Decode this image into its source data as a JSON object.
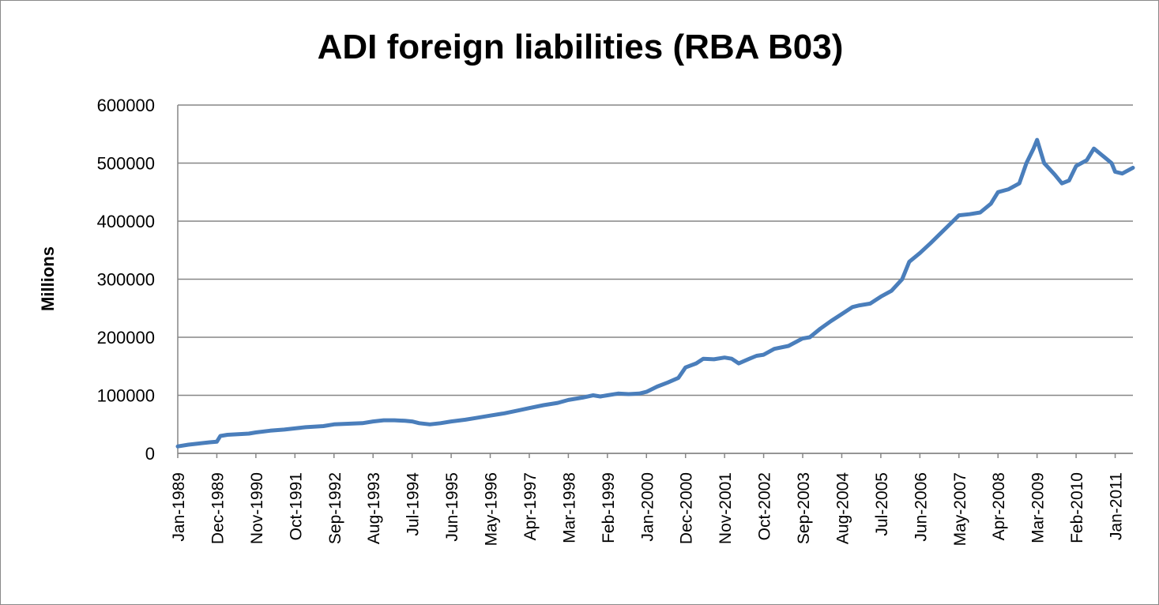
{
  "chart_data": {
    "type": "line",
    "title": "ADI foreign liabilities (RBA B03)",
    "xlabel": "",
    "ylabel": "Millions",
    "ylim": [
      0,
      600000
    ],
    "yticks": [
      "0",
      "100000",
      "200000",
      "300000",
      "400000",
      "500000",
      "600000"
    ],
    "x_start": "Jan-1989",
    "x_end": "Jun-2011",
    "x_frequency": "monthly",
    "xtick_labels": [
      "Jan-1989",
      "Dec-1989",
      "Nov-1990",
      "Oct-1991",
      "Sep-1992",
      "Aug-1993",
      "Jul-1994",
      "Jun-1995",
      "May-1996",
      "Apr-1997",
      "Mar-1998",
      "Feb-1999",
      "Jan-2000",
      "Dec-2000",
      "Nov-2001",
      "Oct-2002",
      "Sep-2003",
      "Aug-2004",
      "Jul-2005",
      "Jun-2006",
      "May-2007",
      "Apr-2008",
      "Mar-2009",
      "Feb-2010",
      "Jan-2011"
    ],
    "grid": true,
    "legend": "none",
    "series": [
      {
        "color": "#4a7ebb",
        "points": [
          [
            "Jan-1989",
            12000
          ],
          [
            "Apr-1989",
            15000
          ],
          [
            "Jul-1989",
            17000
          ],
          [
            "Oct-1989",
            19000
          ],
          [
            "Dec-1989",
            20000
          ],
          [
            "Jan-1990",
            30000
          ],
          [
            "Mar-1990",
            32000
          ],
          [
            "Jun-1990",
            33000
          ],
          [
            "Sep-1990",
            34000
          ],
          [
            "Nov-1990",
            36000
          ],
          [
            "Mar-1991",
            39000
          ],
          [
            "Jul-1991",
            41000
          ],
          [
            "Oct-1991",
            43000
          ],
          [
            "Jan-1992",
            45000
          ],
          [
            "Jun-1992",
            47000
          ],
          [
            "Sep-1992",
            50000
          ],
          [
            "Jan-1993",
            51000
          ],
          [
            "May-1993",
            52000
          ],
          [
            "Aug-1993",
            55000
          ],
          [
            "Nov-1993",
            57000
          ],
          [
            "Feb-1994",
            57000
          ],
          [
            "May-1994",
            56000
          ],
          [
            "Jul-1994",
            55000
          ],
          [
            "Sep-1994",
            52000
          ],
          [
            "Dec-1994",
            50000
          ],
          [
            "Mar-1995",
            52000
          ],
          [
            "Jun-1995",
            55000
          ],
          [
            "Oct-1995",
            58000
          ],
          [
            "Jan-1996",
            61000
          ],
          [
            "May-1996",
            65000
          ],
          [
            "Sep-1996",
            69000
          ],
          [
            "Jan-1997",
            74000
          ],
          [
            "Apr-1997",
            78000
          ],
          [
            "Aug-1997",
            83000
          ],
          [
            "Dec-1997",
            87000
          ],
          [
            "Mar-1998",
            92000
          ],
          [
            "Jul-1998",
            96000
          ],
          [
            "Oct-1998",
            100000
          ],
          [
            "Dec-1998",
            98000
          ],
          [
            "Feb-1999",
            100000
          ],
          [
            "May-1999",
            103000
          ],
          [
            "Aug-1999",
            102000
          ],
          [
            "Nov-1999",
            103000
          ],
          [
            "Jan-2000",
            106000
          ],
          [
            "Apr-2000",
            115000
          ],
          [
            "Jul-2000",
            122000
          ],
          [
            "Oct-2000",
            130000
          ],
          [
            "Dec-2000",
            148000
          ],
          [
            "Mar-2001",
            155000
          ],
          [
            "May-2001",
            163000
          ],
          [
            "Aug-2001",
            162000
          ],
          [
            "Nov-2001",
            165000
          ],
          [
            "Jan-2002",
            163000
          ],
          [
            "Mar-2002",
            155000
          ],
          [
            "Jun-2002",
            163000
          ],
          [
            "Aug-2002",
            168000
          ],
          [
            "Oct-2002",
            170000
          ],
          [
            "Jan-2003",
            180000
          ],
          [
            "May-2003",
            185000
          ],
          [
            "Sep-2003",
            198000
          ],
          [
            "Nov-2003",
            200000
          ],
          [
            "Feb-2004",
            215000
          ],
          [
            "May-2004",
            228000
          ],
          [
            "Aug-2004",
            240000
          ],
          [
            "Nov-2004",
            252000
          ],
          [
            "Jan-2005",
            255000
          ],
          [
            "Apr-2005",
            258000
          ],
          [
            "Jul-2005",
            270000
          ],
          [
            "Oct-2005",
            280000
          ],
          [
            "Jan-2006",
            300000
          ],
          [
            "Mar-2006",
            330000
          ],
          [
            "Jun-2006",
            345000
          ],
          [
            "Sep-2006",
            362000
          ],
          [
            "Dec-2006",
            380000
          ],
          [
            "Mar-2007",
            398000
          ],
          [
            "May-2007",
            410000
          ],
          [
            "Aug-2007",
            412000
          ],
          [
            "Nov-2007",
            415000
          ],
          [
            "Feb-2008",
            430000
          ],
          [
            "Apr-2008",
            450000
          ],
          [
            "Jul-2008",
            455000
          ],
          [
            "Oct-2008",
            465000
          ],
          [
            "Dec-2008",
            500000
          ],
          [
            "Feb-2009",
            525000
          ],
          [
            "Mar-2009",
            540000
          ],
          [
            "May-2009",
            500000
          ],
          [
            "Aug-2009",
            480000
          ],
          [
            "Oct-2009",
            465000
          ],
          [
            "Dec-2009",
            470000
          ],
          [
            "Feb-2010",
            495000
          ],
          [
            "May-2010",
            505000
          ],
          [
            "Jul-2010",
            525000
          ],
          [
            "Oct-2010",
            510000
          ],
          [
            "Dec-2010",
            500000
          ],
          [
            "Jan-2011",
            485000
          ],
          [
            "Mar-2011",
            482000
          ],
          [
            "Jun-2011",
            492000
          ]
        ]
      }
    ]
  }
}
